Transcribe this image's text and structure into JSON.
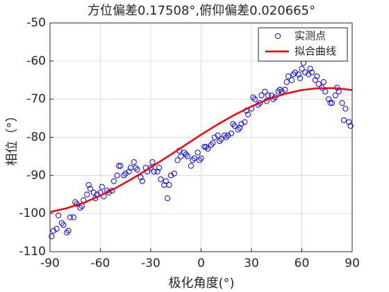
{
  "chart_data": {
    "type": "scatter",
    "title": "方位偏差0.17508°,俯仰偏差0.020665°",
    "xlabel": "极化角度(°)",
    "ylabel": "相位（°）",
    "xlim": [
      -90,
      90
    ],
    "xticks": [
      -90,
      -60,
      -30,
      0,
      30,
      60,
      90
    ],
    "ylim": [
      -110,
      -50
    ],
    "yticks": [
      -110,
      -100,
      -90,
      -80,
      -70,
      -60,
      -50
    ],
    "grid": true,
    "legend": "northeast",
    "series": [
      {
        "name": "实测点",
        "type": "scatter",
        "color": "#0000ff",
        "x": [
          -89,
          -88,
          -86,
          -85,
          -83,
          -82,
          -80,
          -79,
          -78,
          -76,
          -75,
          -74,
          -72,
          -71,
          -70,
          -68,
          -67,
          -66,
          -64,
          -63,
          -62,
          -60,
          -59,
          -58,
          -56,
          -55,
          -53,
          -52,
          -50,
          -49,
          -48,
          -46,
          -45,
          -43,
          -42,
          -40,
          -39,
          -38,
          -36,
          -35,
          -33,
          -32,
          -30,
          -29,
          -28,
          -26,
          -25,
          -24,
          -22,
          -21,
          -20,
          -19,
          -18,
          -16,
          -14,
          -13,
          -12,
          -10,
          -9,
          -8,
          -6,
          -5,
          -4,
          -2,
          -1,
          0,
          2,
          3,
          4,
          6,
          7,
          8,
          10,
          11,
          12,
          14,
          15,
          16,
          18,
          19,
          20,
          22,
          23,
          24,
          26,
          27,
          28,
          30,
          31,
          32,
          34,
          35,
          36,
          38,
          39,
          40,
          42,
          43,
          44,
          46,
          47,
          48,
          50,
          51,
          52,
          54,
          55,
          56,
          58,
          59,
          60,
          61,
          62,
          64,
          65,
          66,
          68,
          69,
          70,
          72,
          73,
          74,
          76,
          77,
          78,
          80,
          81,
          82,
          84,
          85,
          86,
          88,
          89
        ],
        "values": [
          -106,
          -104.5,
          -104,
          -100.5,
          -102.5,
          -103,
          -105,
          -104.5,
          -101,
          -101,
          -97,
          -97.5,
          -98.5,
          -98,
          -96.5,
          -95,
          -92.5,
          -93.5,
          -94.5,
          -96,
          -95,
          -94.5,
          -93,
          -95.5,
          -94,
          -94.5,
          -94,
          -91.5,
          -90,
          -87.5,
          -87.5,
          -90,
          -89.5,
          -89,
          -88,
          -86.5,
          -88,
          -88.5,
          -90.5,
          -91.5,
          -88,
          -89,
          -88,
          -86.5,
          -89,
          -89,
          -88,
          -91,
          -92.5,
          -91.5,
          -96,
          -92.5,
          -90,
          -89.5,
          -86,
          -83.5,
          -85,
          -84,
          -84.5,
          -85,
          -87.5,
          -86,
          -85.5,
          -84,
          -86,
          -85.5,
          -82.5,
          -82.5,
          -83,
          -82,
          -81.5,
          -80,
          -79.5,
          -81,
          -80.5,
          -79.5,
          -80,
          -79.5,
          -79,
          -76.5,
          -77,
          -78,
          -77.5,
          -76.5,
          -76,
          -73,
          -74,
          -72.5,
          -69.5,
          -70,
          -71.5,
          -71,
          -69,
          -68,
          -70.5,
          -69,
          -69,
          -70,
          -69.5,
          -68,
          -67.5,
          -68,
          -67.5,
          -65.5,
          -64,
          -65,
          -63.5,
          -63,
          -63.5,
          -64.5,
          -62,
          -60.5,
          -63,
          -63.5,
          -62,
          -63,
          -65,
          -64,
          -66,
          -67,
          -65.5,
          -68,
          -70,
          -71,
          -71,
          -69,
          -67,
          -68,
          -71,
          -75.5,
          -72.5,
          -76,
          -77
        ]
      },
      {
        "name": "拟合曲线",
        "type": "line",
        "color": "#ff0000",
        "x": [
          -90,
          -80,
          -70,
          -60,
          -50,
          -40,
          -30,
          -20,
          -10,
          0,
          10,
          20,
          30,
          40,
          50,
          60,
          70,
          80,
          90
        ],
        "values": [
          -99.6,
          -98.6,
          -97.2,
          -95.3,
          -93.1,
          -90.6,
          -87.9,
          -85.1,
          -82.2,
          -79.3,
          -76.6,
          -74.1,
          -71.9,
          -70.0,
          -68.6,
          -67.6,
          -67.1,
          -67.1,
          -67.6
        ]
      }
    ]
  }
}
